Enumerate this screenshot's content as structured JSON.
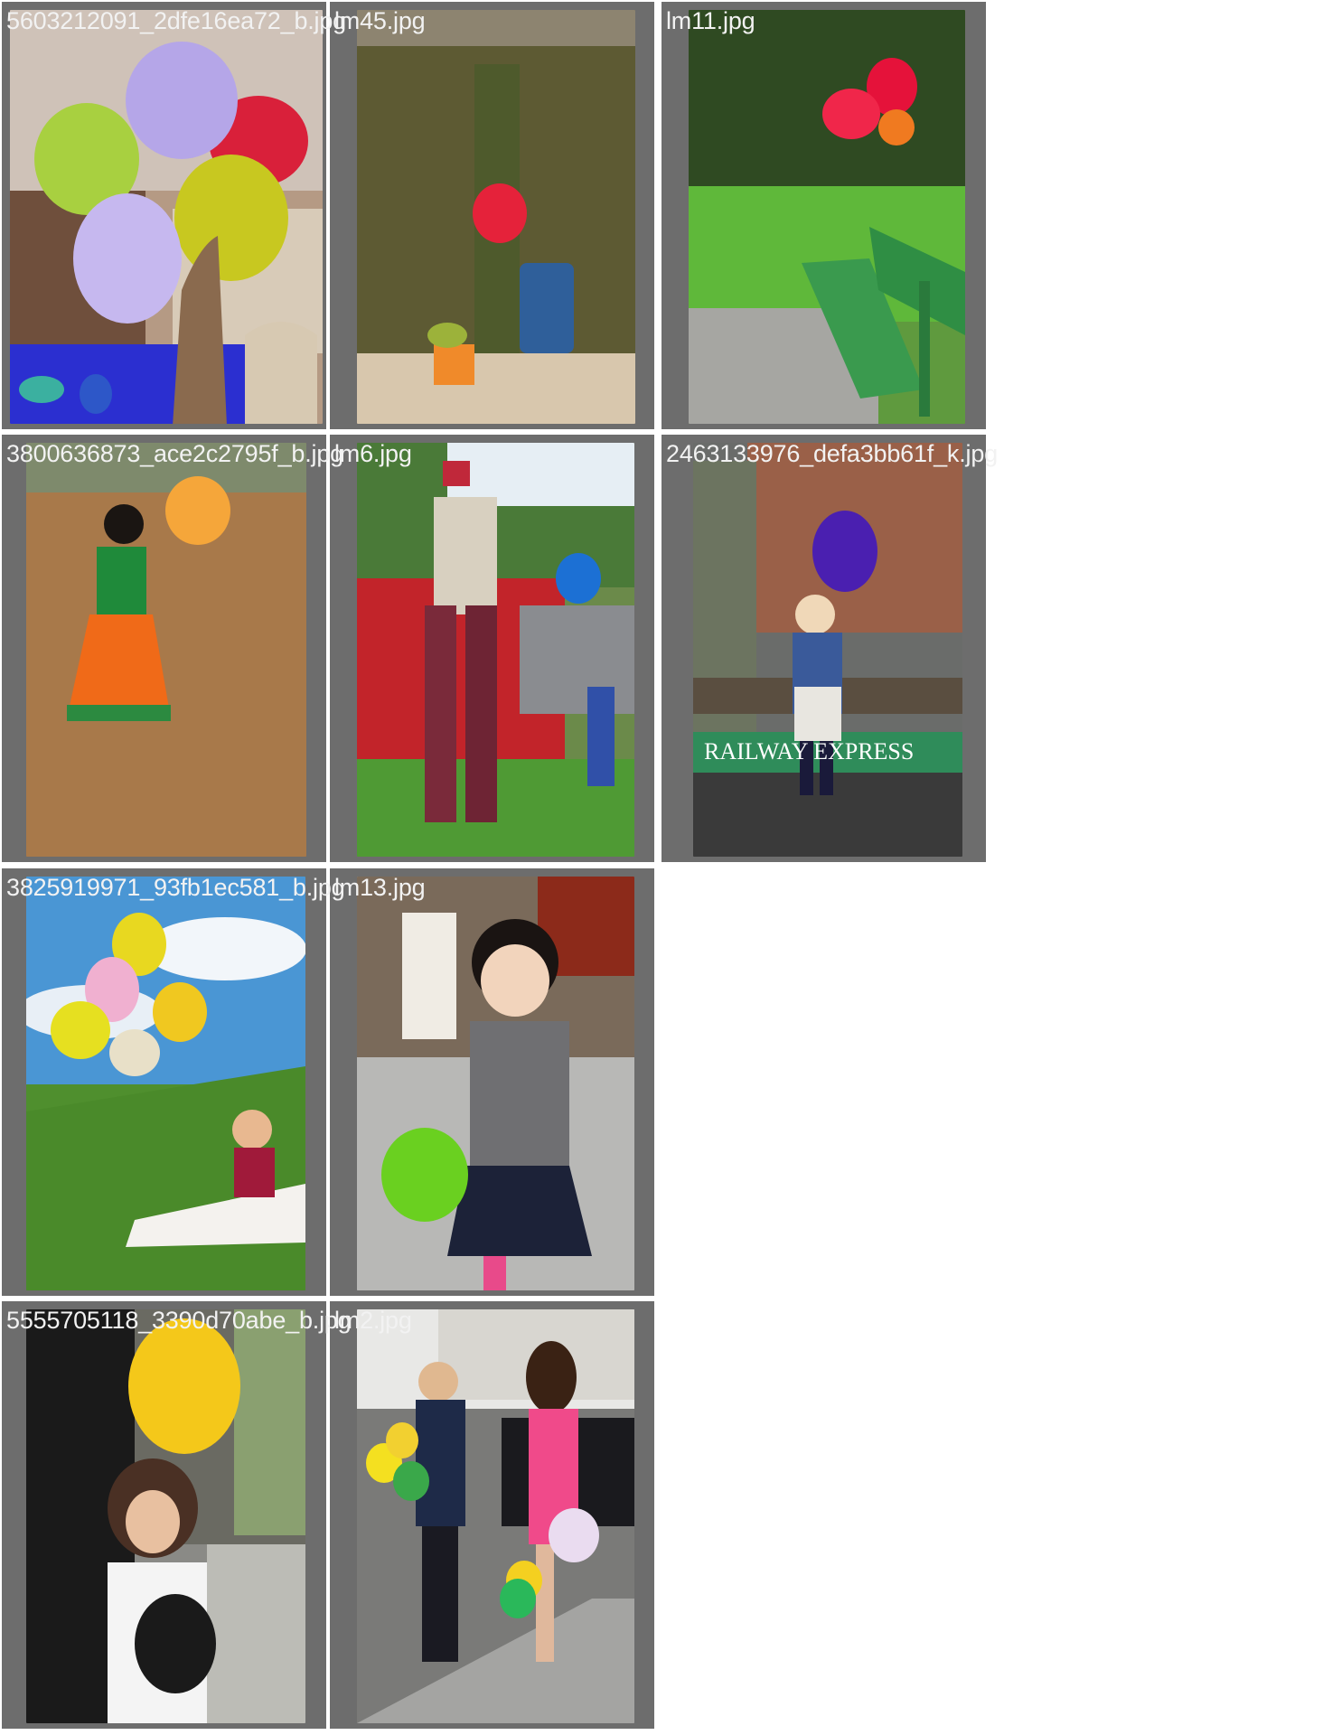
{
  "gallery": {
    "tiles": [
      {
        "filename": "5603212091_2dfe16ea72_b.jpg",
        "scene": "party balloons"
      },
      {
        "filename": "lm45.jpg",
        "scene": "red balloon against mossy wall"
      },
      {
        "filename": "lm11.jpg",
        "scene": "red balloons tied to park bench"
      },
      {
        "filename": "3800636873_ace2c2795f_b.jpg",
        "scene": "child with orange balloon"
      },
      {
        "filename": "lm6.jpg",
        "scene": "stilt walker with blue balloon"
      },
      {
        "filename": "2463133976_defa3bb61f_k.jpg",
        "scene": "child with purple balloon on railway cart"
      },
      {
        "filename": "3825919971_93fb1ec581_b.jpg",
        "scene": "baby with balloons on grass"
      },
      {
        "filename": "lm13.jpg",
        "scene": "toddler with green balloon"
      },
      {
        "filename": "5555705118_3390d70abe_b.jpg",
        "scene": "girl with yellow balloon"
      },
      {
        "filename": "lm2.jpg",
        "scene": "couple with balloons on street"
      }
    ]
  },
  "railway_sign": "RAILWAY EXPRESS"
}
